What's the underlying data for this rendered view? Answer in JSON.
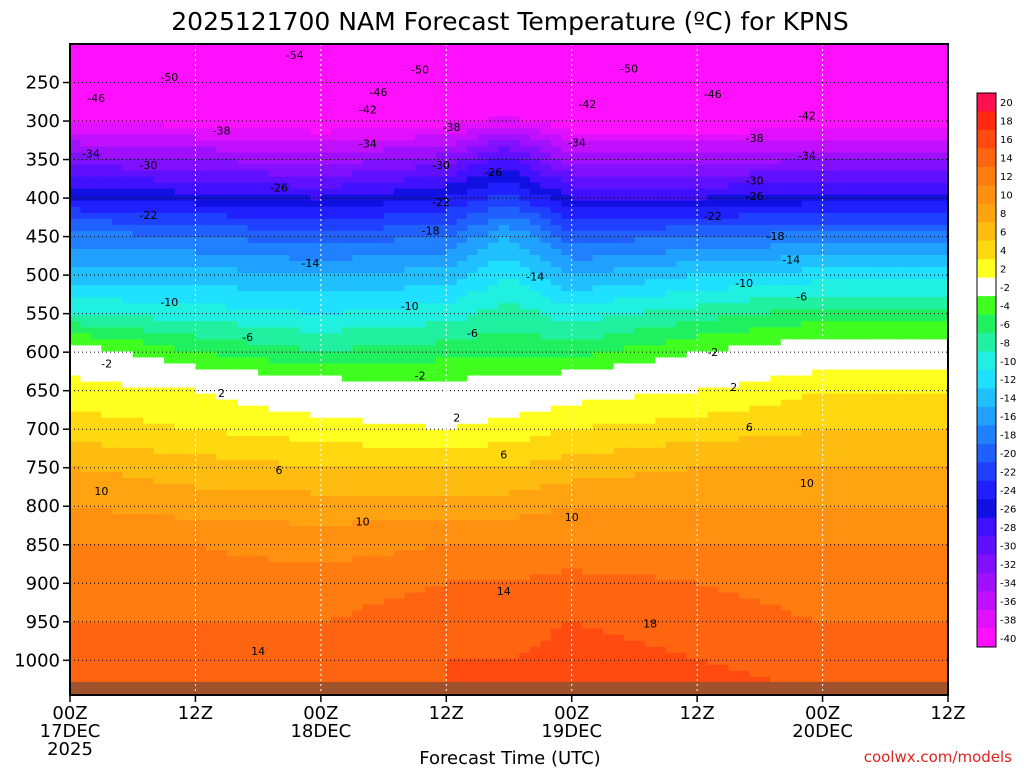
{
  "chart_data": {
    "type": "heatmap",
    "title": "2025121700 NAM Forecast Temperature (ºC) for KPNS",
    "xlabel": "Forecast Time (UTC)",
    "ylabel": "",
    "credit": "coolwx.com/models",
    "x_range_hours": [
      0,
      84
    ],
    "y_range_hPa": [
      1045,
      200
    ],
    "x_ticks": [
      {
        "h": 0,
        "label": "00Z",
        "date": "17DEC",
        "year": "2025"
      },
      {
        "h": 12,
        "label": "12Z",
        "date": "",
        "year": ""
      },
      {
        "h": 24,
        "label": "00Z",
        "date": "18DEC",
        "year": ""
      },
      {
        "h": 36,
        "label": "12Z",
        "date": "",
        "year": ""
      },
      {
        "h": 48,
        "label": "00Z",
        "date": "19DEC",
        "year": ""
      },
      {
        "h": 60,
        "label": "12Z",
        "date": "",
        "year": ""
      },
      {
        "h": 72,
        "label": "00Z",
        "date": "20DEC",
        "year": ""
      },
      {
        "h": 84,
        "label": "12Z",
        "date": "",
        "year": ""
      }
    ],
    "y_ticks": [
      250,
      300,
      350,
      400,
      450,
      500,
      550,
      600,
      650,
      700,
      750,
      800,
      850,
      900,
      950,
      1000
    ],
    "colorbar_labels": [
      20,
      18,
      16,
      14,
      12,
      10,
      8,
      6,
      4,
      2,
      -2,
      -4,
      -6,
      -8,
      -10,
      -12,
      -14,
      -16,
      -18,
      -20,
      -22,
      -24,
      -26,
      -28,
      -30,
      -32,
      -34,
      -36,
      -38,
      -40
    ],
    "colorbar_colors": [
      "#ff1050",
      "#ff2a10",
      "#ff4a10",
      "#ff6410",
      "#ff7c10",
      "#ff9010",
      "#ffa410",
      "#ffbc10",
      "#ffd810",
      "#ffff20",
      "#ffffff",
      "#40ff20",
      "#20f060",
      "#20f0a0",
      "#20f0e0",
      "#20e0ff",
      "#20c0ff",
      "#20a0ff",
      "#2080ff",
      "#2060ff",
      "#2040ff",
      "#2020ff",
      "#1010e0",
      "#4010ff",
      "#6010ff",
      "#8010ff",
      "#a010ff",
      "#c010ff",
      "#e010ff",
      "#ff10ff"
    ],
    "profiles": [
      {
        "h": 0,
        "levels": [
          {
            "p": 1045,
            "t": 16
          },
          {
            "p": 1000,
            "t": 14
          },
          {
            "p": 950,
            "t": 14
          },
          {
            "p": 900,
            "t": 13
          },
          {
            "p": 850,
            "t": 12
          },
          {
            "p": 800,
            "t": 10
          },
          {
            "p": 750,
            "t": 8
          },
          {
            "p": 700,
            "t": 5
          },
          {
            "p": 650,
            "t": 3
          },
          {
            "p": 610,
            "t": 1
          },
          {
            "p": 550,
            "t": -8
          },
          {
            "p": 500,
            "t": -13
          },
          {
            "p": 450,
            "t": -17
          },
          {
            "p": 400,
            "t": -24
          },
          {
            "p": 350,
            "t": -31
          },
          {
            "p": 300,
            "t": -38
          },
          {
            "p": 250,
            "t": -48
          },
          {
            "p": 200,
            "t": -54
          }
        ]
      },
      {
        "h": 12,
        "levels": [
          {
            "p": 1045,
            "t": 16
          },
          {
            "p": 1000,
            "t": 15
          },
          {
            "p": 950,
            "t": 14
          },
          {
            "p": 900,
            "t": 13
          },
          {
            "p": 850,
            "t": 12
          },
          {
            "p": 800,
            "t": 9
          },
          {
            "p": 750,
            "t": 7
          },
          {
            "p": 700,
            "t": 4
          },
          {
            "p": 650,
            "t": 2
          },
          {
            "p": 610,
            "t": -3
          },
          {
            "p": 550,
            "t": -9
          },
          {
            "p": 500,
            "t": -13
          },
          {
            "p": 450,
            "t": -18
          },
          {
            "p": 400,
            "t": -25
          },
          {
            "p": 350,
            "t": -32
          },
          {
            "p": 300,
            "t": -39
          },
          {
            "p": 250,
            "t": -49
          },
          {
            "p": 200,
            "t": -55
          }
        ]
      },
      {
        "h": 24,
        "levels": [
          {
            "p": 1045,
            "t": 16
          },
          {
            "p": 1000,
            "t": 15
          },
          {
            "p": 950,
            "t": 14
          },
          {
            "p": 900,
            "t": 13
          },
          {
            "p": 850,
            "t": 11
          },
          {
            "p": 800,
            "t": 9
          },
          {
            "p": 750,
            "t": 6
          },
          {
            "p": 700,
            "t": 3
          },
          {
            "p": 650,
            "t": 0
          },
          {
            "p": 610,
            "t": -5
          },
          {
            "p": 550,
            "t": -10
          },
          {
            "p": 500,
            "t": -14
          },
          {
            "p": 450,
            "t": -19
          },
          {
            "p": 400,
            "t": -26
          },
          {
            "p": 350,
            "t": -33
          },
          {
            "p": 300,
            "t": -40
          },
          {
            "p": 250,
            "t": -49
          },
          {
            "p": 200,
            "t": -55
          }
        ]
      },
      {
        "h": 36,
        "levels": [
          {
            "p": 1045,
            "t": 16
          },
          {
            "p": 1000,
            "t": 16
          },
          {
            "p": 950,
            "t": 15
          },
          {
            "p": 900,
            "t": 14
          },
          {
            "p": 850,
            "t": 12
          },
          {
            "p": 800,
            "t": 9
          },
          {
            "p": 750,
            "t": 6
          },
          {
            "p": 700,
            "t": 2
          },
          {
            "p": 650,
            "t": -1
          },
          {
            "p": 610,
            "t": -4
          },
          {
            "p": 550,
            "t": -9
          },
          {
            "p": 500,
            "t": -13
          },
          {
            "p": 450,
            "t": -18
          },
          {
            "p": 400,
            "t": -24
          },
          {
            "p": 350,
            "t": -31
          },
          {
            "p": 300,
            "t": -39
          },
          {
            "p": 250,
            "t": -48
          },
          {
            "p": 200,
            "t": -54
          }
        ]
      },
      {
        "h": 42,
        "levels": [
          {
            "p": 1045,
            "t": 17
          },
          {
            "p": 1000,
            "t": 16
          },
          {
            "p": 950,
            "t": 15
          },
          {
            "p": 900,
            "t": 14
          },
          {
            "p": 850,
            "t": 12
          },
          {
            "p": 800,
            "t": 9
          },
          {
            "p": 750,
            "t": 6
          },
          {
            "p": 700,
            "t": 3
          },
          {
            "p": 650,
            "t": 0
          },
          {
            "p": 610,
            "t": -4
          },
          {
            "p": 550,
            "t": -7
          },
          {
            "p": 500,
            "t": -10
          },
          {
            "p": 450,
            "t": -14
          },
          {
            "p": 400,
            "t": -21
          },
          {
            "p": 350,
            "t": -27
          },
          {
            "p": 300,
            "t": -37
          },
          {
            "p": 250,
            "t": -47
          },
          {
            "p": 200,
            "t": -53
          }
        ]
      },
      {
        "h": 48,
        "levels": [
          {
            "p": 1045,
            "t": 18
          },
          {
            "p": 1000,
            "t": 17
          },
          {
            "p": 950,
            "t": 16
          },
          {
            "p": 900,
            "t": 15
          },
          {
            "p": 850,
            "t": 12
          },
          {
            "p": 800,
            "t": 10
          },
          {
            "p": 750,
            "t": 7
          },
          {
            "p": 700,
            "t": 4
          },
          {
            "p": 650,
            "t": 1
          },
          {
            "p": 610,
            "t": -4
          },
          {
            "p": 550,
            "t": -9
          },
          {
            "p": 500,
            "t": -14
          },
          {
            "p": 450,
            "t": -19
          },
          {
            "p": 400,
            "t": -26
          },
          {
            "p": 350,
            "t": -33
          },
          {
            "p": 300,
            "t": -40
          },
          {
            "p": 250,
            "t": -49
          },
          {
            "p": 200,
            "t": -55
          }
        ]
      },
      {
        "h": 60,
        "levels": [
          {
            "p": 1045,
            "t": 17
          },
          {
            "p": 1000,
            "t": 16
          },
          {
            "p": 950,
            "t": 15
          },
          {
            "p": 900,
            "t": 14
          },
          {
            "p": 850,
            "t": 12
          },
          {
            "p": 800,
            "t": 10
          },
          {
            "p": 750,
            "t": 8
          },
          {
            "p": 700,
            "t": 5
          },
          {
            "p": 650,
            "t": 2
          },
          {
            "p": 610,
            "t": -1
          },
          {
            "p": 550,
            "t": -7
          },
          {
            "p": 500,
            "t": -12
          },
          {
            "p": 450,
            "t": -18
          },
          {
            "p": 400,
            "t": -26
          },
          {
            "p": 350,
            "t": -33
          },
          {
            "p": 300,
            "t": -40
          },
          {
            "p": 250,
            "t": -49
          },
          {
            "p": 200,
            "t": -55
          }
        ]
      },
      {
        "h": 72,
        "levels": [
          {
            "p": 1045,
            "t": 16
          },
          {
            "p": 1000,
            "t": 15
          },
          {
            "p": 950,
            "t": 14
          },
          {
            "p": 900,
            "t": 13
          },
          {
            "p": 850,
            "t": 12
          },
          {
            "p": 800,
            "t": 10
          },
          {
            "p": 750,
            "t": 8
          },
          {
            "p": 700,
            "t": 6
          },
          {
            "p": 650,
            "t": 4
          },
          {
            "p": 610,
            "t": 1
          },
          {
            "p": 550,
            "t": -5
          },
          {
            "p": 500,
            "t": -11
          },
          {
            "p": 450,
            "t": -17
          },
          {
            "p": 400,
            "t": -25
          },
          {
            "p": 350,
            "t": -32
          },
          {
            "p": 300,
            "t": -40
          },
          {
            "p": 250,
            "t": -48
          },
          {
            "p": 200,
            "t": -54
          }
        ]
      },
      {
        "h": 84,
        "levels": [
          {
            "p": 1045,
            "t": 16
          },
          {
            "p": 1000,
            "t": 15
          },
          {
            "p": 950,
            "t": 14
          },
          {
            "p": 900,
            "t": 13
          },
          {
            "p": 850,
            "t": 12
          },
          {
            "p": 800,
            "t": 10
          },
          {
            "p": 750,
            "t": 8
          },
          {
            "p": 700,
            "t": 6
          },
          {
            "p": 650,
            "t": 4
          },
          {
            "p": 610,
            "t": 1
          },
          {
            "p": 550,
            "t": -5
          },
          {
            "p": 500,
            "t": -11
          },
          {
            "p": 450,
            "t": -17
          },
          {
            "p": 400,
            "t": -25
          },
          {
            "p": 350,
            "t": -32
          },
          {
            "p": 300,
            "t": -40
          },
          {
            "p": 250,
            "t": -48
          },
          {
            "p": 200,
            "t": -54
          }
        ]
      }
    ],
    "contour_labels": [
      {
        "h": 21.5,
        "p": 214,
        "label": "-54"
      },
      {
        "h": 33.5,
        "p": 233,
        "label": "-50"
      },
      {
        "h": 9.5,
        "p": 243,
        "label": "-50"
      },
      {
        "h": 53.5,
        "p": 232,
        "label": "-50"
      },
      {
        "h": 2.5,
        "p": 270,
        "label": "-46"
      },
      {
        "h": 29.5,
        "p": 262,
        "label": "-46"
      },
      {
        "h": 61.5,
        "p": 265,
        "label": "-46"
      },
      {
        "h": 28.5,
        "p": 285,
        "label": "-42"
      },
      {
        "h": 49.5,
        "p": 278,
        "label": "-42"
      },
      {
        "h": 70.5,
        "p": 293,
        "label": "-42"
      },
      {
        "h": 14.5,
        "p": 312,
        "label": "-38"
      },
      {
        "h": 36.5,
        "p": 308,
        "label": "-38"
      },
      {
        "h": 65.5,
        "p": 322,
        "label": "-38"
      },
      {
        "h": 2.0,
        "p": 342,
        "label": "-34"
      },
      {
        "h": 28.5,
        "p": 329,
        "label": "-34"
      },
      {
        "h": 48.5,
        "p": 328,
        "label": "-34"
      },
      {
        "h": 70.5,
        "p": 345,
        "label": "-34"
      },
      {
        "h": 7.5,
        "p": 357,
        "label": "-30"
      },
      {
        "h": 35.5,
        "p": 357,
        "label": "-30"
      },
      {
        "h": 65.5,
        "p": 377,
        "label": "-30"
      },
      {
        "h": 40.5,
        "p": 366,
        "label": "-26"
      },
      {
        "h": 20.0,
        "p": 386,
        "label": "-26"
      },
      {
        "h": 65.5,
        "p": 397,
        "label": "-26"
      },
      {
        "h": 7.5,
        "p": 422,
        "label": "-22"
      },
      {
        "h": 35.5,
        "p": 405,
        "label": "-22"
      },
      {
        "h": 61.5,
        "p": 423,
        "label": "-22"
      },
      {
        "h": 34.5,
        "p": 442,
        "label": "-18"
      },
      {
        "h": 67.5,
        "p": 449,
        "label": "-18"
      },
      {
        "h": 23.0,
        "p": 484,
        "label": "-14"
      },
      {
        "h": 44.5,
        "p": 502,
        "label": "-14"
      },
      {
        "h": 69.0,
        "p": 480,
        "label": "-14"
      },
      {
        "h": 9.5,
        "p": 535,
        "label": "-10"
      },
      {
        "h": 32.5,
        "p": 540,
        "label": "-10"
      },
      {
        "h": 64.5,
        "p": 510,
        "label": "-10"
      },
      {
        "h": 17.0,
        "p": 580,
        "label": "-6"
      },
      {
        "h": 38.5,
        "p": 575,
        "label": "-6"
      },
      {
        "h": 70.0,
        "p": 528,
        "label": "-6"
      },
      {
        "h": 3.5,
        "p": 615,
        "label": "-2"
      },
      {
        "h": 33.5,
        "p": 630,
        "label": "-2"
      },
      {
        "h": 61.5,
        "p": 600,
        "label": "-2"
      },
      {
        "h": 14.5,
        "p": 653,
        "label": "2"
      },
      {
        "h": 37.0,
        "p": 685,
        "label": "2"
      },
      {
        "h": 63.5,
        "p": 645,
        "label": "2"
      },
      {
        "h": 20.0,
        "p": 753,
        "label": "6"
      },
      {
        "h": 41.5,
        "p": 733,
        "label": "6"
      },
      {
        "h": 65.0,
        "p": 697,
        "label": "6"
      },
      {
        "h": 3.0,
        "p": 780,
        "label": "10"
      },
      {
        "h": 28.0,
        "p": 820,
        "label": "10"
      },
      {
        "h": 48.0,
        "p": 814,
        "label": "10"
      },
      {
        "h": 70.5,
        "p": 770,
        "label": "10"
      },
      {
        "h": 41.5,
        "p": 910,
        "label": "14"
      },
      {
        "h": 18.0,
        "p": 988,
        "label": "14"
      },
      {
        "h": 55.5,
        "p": 952,
        "label": "18"
      }
    ]
  }
}
